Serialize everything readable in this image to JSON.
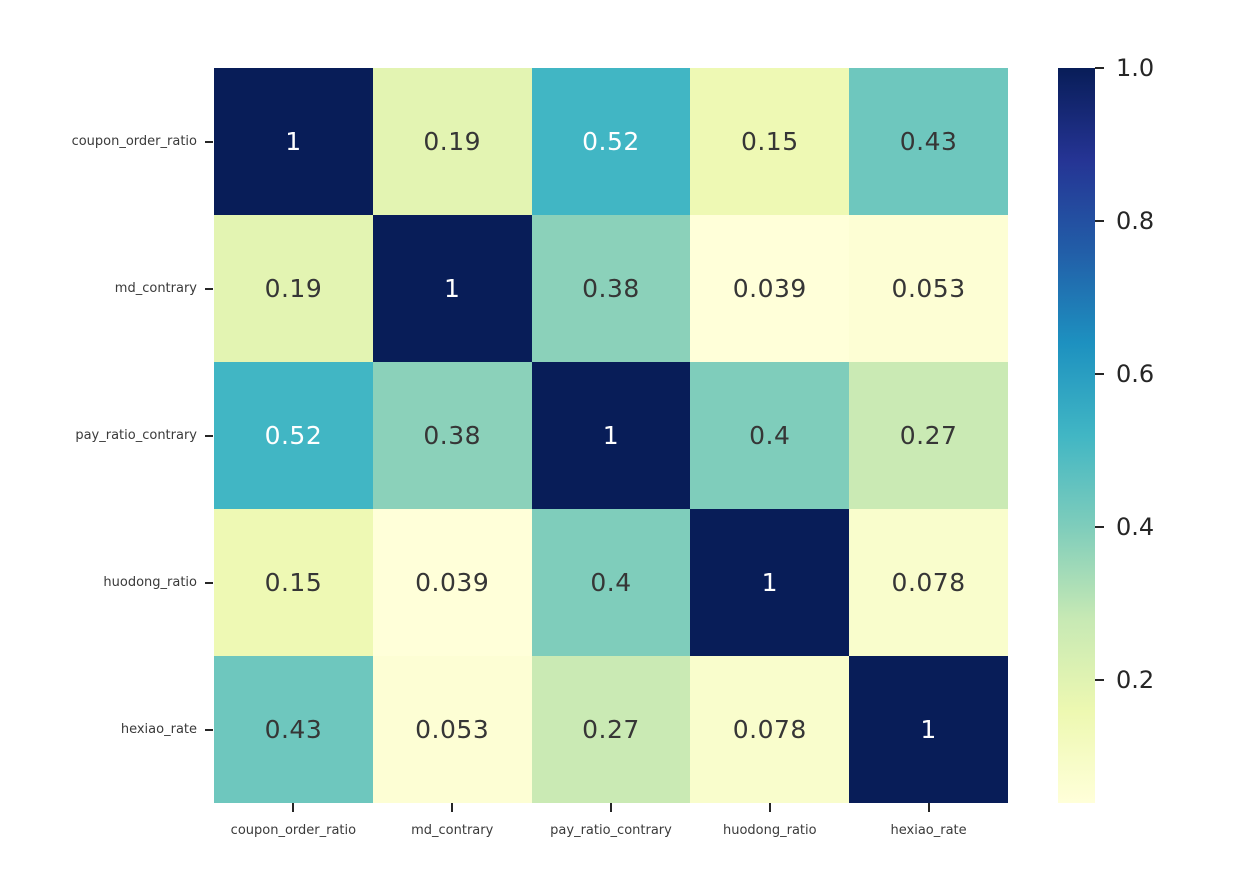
{
  "chart_data": {
    "type": "heatmap",
    "title": "",
    "xlabel": "",
    "ylabel": "",
    "grid": false,
    "x_labels": [
      "coupon_order_ratio",
      "md_contrary",
      "pay_ratio_contrary",
      "huodong_ratio",
      "hexiao_rate"
    ],
    "y_labels": [
      "coupon_order_ratio",
      "md_contrary",
      "pay_ratio_contrary",
      "huodong_ratio",
      "hexiao_rate"
    ],
    "matrix": [
      [
        1,
        0.19,
        0.52,
        0.15,
        0.43
      ],
      [
        0.19,
        1,
        0.38,
        0.039,
        0.053
      ],
      [
        0.52,
        0.38,
        1,
        0.4,
        0.27
      ],
      [
        0.15,
        0.039,
        0.4,
        1,
        0.078
      ],
      [
        0.43,
        0.053,
        0.27,
        0.078,
        1
      ]
    ],
    "cell_labels": [
      [
        "1",
        "0.19",
        "0.52",
        "0.15",
        "0.43"
      ],
      [
        "0.19",
        "1",
        "0.38",
        "0.039",
        "0.053"
      ],
      [
        "0.52",
        "0.38",
        "1",
        "0.4",
        "0.27"
      ],
      [
        "0.15",
        "0.039",
        "0.4",
        "1",
        "0.078"
      ],
      [
        "0.43",
        "0.053",
        "0.27",
        "0.078",
        "1"
      ]
    ],
    "cell_colors": [
      [
        "#081d58",
        "#e3f4b2",
        "#41b6c4",
        "#eef9b4",
        "#6ec7be"
      ],
      [
        "#e3f4b2",
        "#081d58",
        "#8bd1ba",
        "#ffffd9",
        "#fdfed4"
      ],
      [
        "#41b6c4",
        "#8bd1ba",
        "#081d58",
        "#7fcdbb",
        "#caeab4"
      ],
      [
        "#eef9b4",
        "#ffffd9",
        "#7fcdbb",
        "#081d58",
        "#f9fdcc"
      ],
      [
        "#6ec7be",
        "#fdfed4",
        "#caeab4",
        "#f9fdcc",
        "#081d58"
      ]
    ],
    "cell_text_colors": [
      [
        "#ffffff",
        "#363636",
        "#ffffff",
        "#363636",
        "#363636"
      ],
      [
        "#363636",
        "#ffffff",
        "#363636",
        "#363636",
        "#363636"
      ],
      [
        "#ffffff",
        "#363636",
        "#ffffff",
        "#363636",
        "#363636"
      ],
      [
        "#363636",
        "#363636",
        "#363636",
        "#ffffff",
        "#363636"
      ],
      [
        "#363636",
        "#363636",
        "#363636",
        "#363636",
        "#ffffff"
      ]
    ],
    "colorbar": {
      "position": "right",
      "vmin": 0.039,
      "vmax": 1.0,
      "tick_labels": [
        "1.0",
        "0.8",
        "0.6",
        "0.4",
        "0.2"
      ],
      "tick_values": [
        1.0,
        0.8,
        0.6,
        0.4,
        0.2
      ],
      "gradient_top_to_bottom": [
        "#081d58",
        "#253494",
        "#225ea8",
        "#1d91c0",
        "#41b6c4",
        "#7fcdbb",
        "#c7e9b4",
        "#edf8b1",
        "#ffffd9"
      ]
    }
  }
}
